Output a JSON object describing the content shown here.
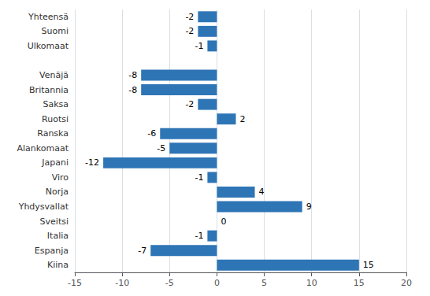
{
  "chart_data": {
    "type": "bar",
    "orientation": "horizontal",
    "categories": [
      "Yhteensä",
      "Suomi",
      "Ulkomaat",
      null,
      "Venäjä",
      "Britannia",
      "Saksa",
      "Ruotsi",
      "Ranska",
      "Alankomaat",
      "Japani",
      "Viro",
      "Norja",
      "Yhdysvallat",
      "Sveitsi",
      "Italia",
      "Espanja",
      "Kiina"
    ],
    "values": [
      -2,
      -2,
      -1,
      null,
      -8,
      -8,
      -2,
      2,
      -6,
      -5,
      -12,
      -1,
      4,
      9,
      0,
      -1,
      -7,
      15
    ],
    "color": "#2E75B6",
    "xlim": [
      -15,
      20
    ],
    "xticks": [
      -15,
      -10,
      -5,
      0,
      5,
      10,
      15,
      20
    ],
    "grid": true,
    "data_labels": true
  }
}
